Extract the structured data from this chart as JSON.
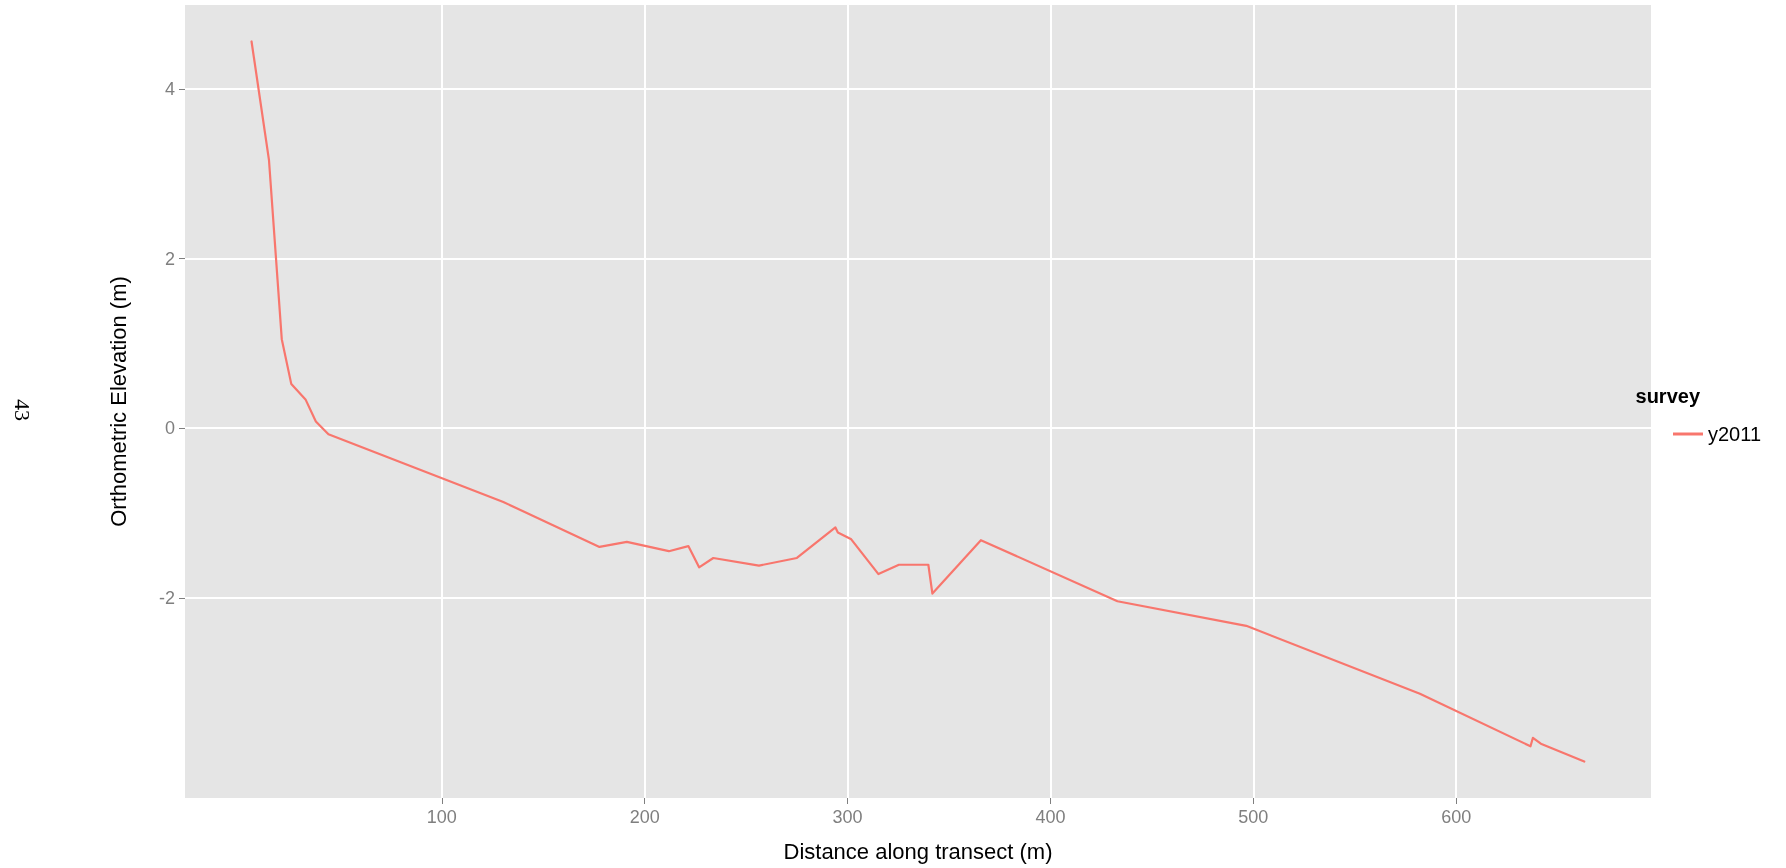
{
  "chart_data": {
    "type": "line",
    "xlabel": "Distance along transect (m)",
    "ylabel": "Orthometric Elevation (m)",
    "legend_title": "survey",
    "annotations": [
      "43"
    ],
    "xlim": [
      -26.6,
      696
    ],
    "xticks": [
      100,
      200,
      300,
      400,
      500,
      600
    ],
    "ylim": [
      -4.36,
      4.99
    ],
    "yticks": [
      -2,
      0,
      2,
      4
    ],
    "grid": true,
    "legend": "right",
    "marker": "none",
    "line_style": "solid",
    "series": [
      {
        "name": "y2011",
        "color": "#f8766d",
        "x": [
          6.2,
          14.8,
          21.1,
          25.8,
          32.8,
          37.9,
          44.1,
          130.3,
          177.7,
          191.2,
          211.9,
          221.5,
          226.8,
          233.8,
          256.3,
          275,
          294,
          295.2,
          301.8,
          315.2,
          325.3,
          339.8,
          341.8,
          365.7,
          433,
          496.5,
          582.1,
          636.6,
          637.8,
          641.7,
          663.1
        ],
        "values": [
          4.56,
          3.16,
          1.05,
          0.52,
          0.34,
          0.08,
          -0.07,
          -0.87,
          -1.4,
          -1.34,
          -1.45,
          -1.39,
          -1.64,
          -1.53,
          -1.62,
          -1.53,
          -1.17,
          -1.23,
          -1.31,
          -1.72,
          -1.61,
          -1.61,
          -1.95,
          -1.32,
          -2.04,
          -2.33,
          -3.13,
          -3.75,
          -3.65,
          -3.72,
          -3.93
        ]
      }
    ]
  }
}
